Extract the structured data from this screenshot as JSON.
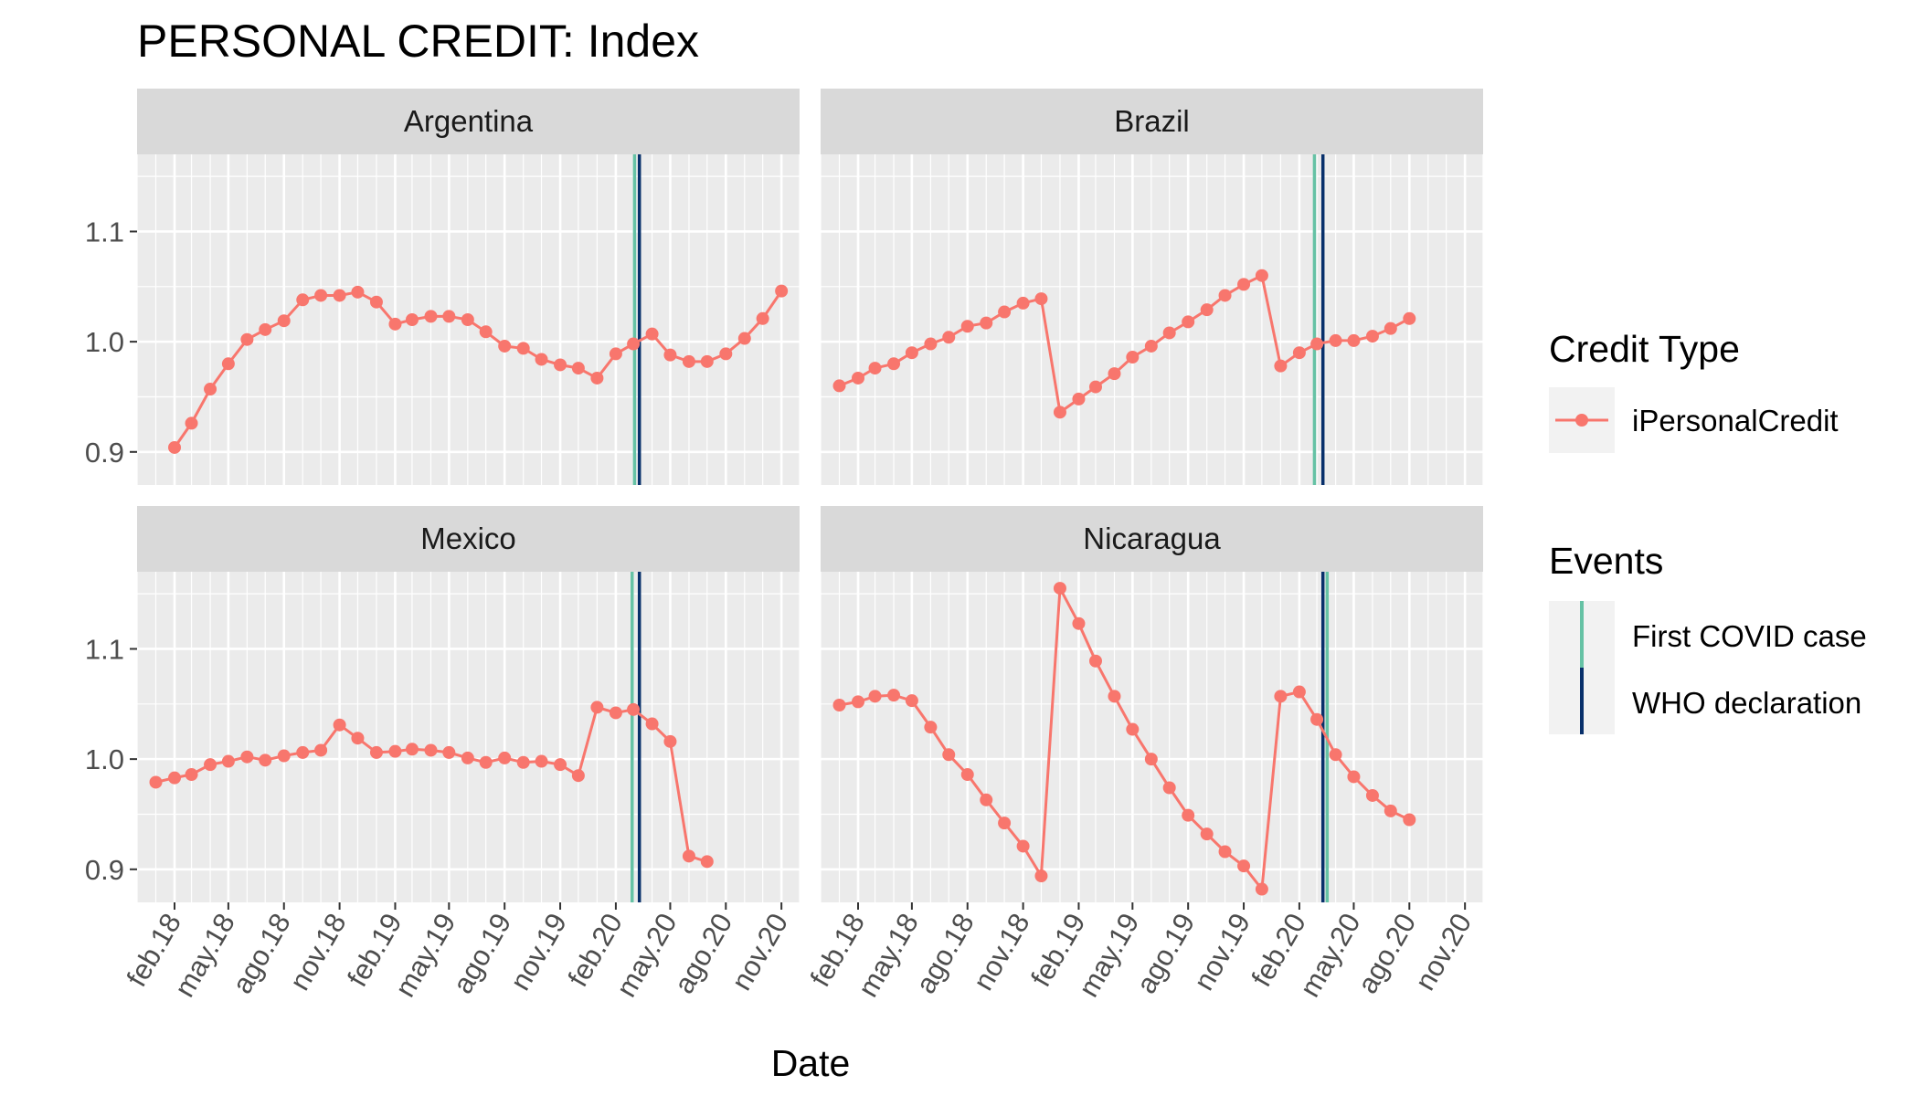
{
  "chart_data": {
    "type": "line",
    "title": "PERSONAL CREDIT: Index",
    "xlabel": "Date",
    "ylabel": "",
    "ylim": [
      0.87,
      1.17
    ],
    "yticks": [
      0.9,
      1.0,
      1.1
    ],
    "ytick_labels": [
      "0.9",
      "1.0",
      "1.1"
    ],
    "xlim": [
      "2017-12-01",
      "2020-12-01"
    ],
    "xticks": [
      "2018-02",
      "2018-05",
      "2018-08",
      "2018-11",
      "2019-02",
      "2019-05",
      "2019-08",
      "2019-11",
      "2020-02",
      "2020-05",
      "2020-08",
      "2020-11"
    ],
    "xtick_labels": [
      "feb.18",
      "may.18",
      "ago.18",
      "nov.18",
      "feb.19",
      "may.19",
      "ago.19",
      "nov.19",
      "feb.20",
      "may.20",
      "ago.20",
      "nov.20"
    ],
    "grid": true,
    "legend_position": "right",
    "series_name": "iPersonalCredit",
    "series_color": "#F8766D",
    "legend": {
      "credit_title": "Credit Type",
      "events_title": "Events"
    },
    "events": [
      {
        "label": "First COVID case",
        "color": "#66C2A5"
      },
      {
        "label": "WHO declaration",
        "color": "#08306B"
      }
    ],
    "panels": [
      {
        "name": "Argentina",
        "first_covid": "2020-03-03",
        "who": "2020-03-11",
        "x": [
          "2018-02",
          "2018-03",
          "2018-04",
          "2018-05",
          "2018-06",
          "2018-07",
          "2018-08",
          "2018-09",
          "2018-10",
          "2018-11",
          "2018-12",
          "2019-01",
          "2019-02",
          "2019-03",
          "2019-04",
          "2019-05",
          "2019-06",
          "2019-07",
          "2019-08",
          "2019-09",
          "2019-10",
          "2019-11",
          "2019-12",
          "2020-01",
          "2020-02",
          "2020-03",
          "2020-04",
          "2020-05",
          "2020-06",
          "2020-07",
          "2020-08",
          "2020-09",
          "2020-10",
          "2020-11"
        ],
        "y": [
          0.904,
          0.926,
          0.957,
          0.98,
          1.002,
          1.011,
          1.019,
          1.038,
          1.042,
          1.042,
          1.045,
          1.036,
          1.016,
          1.02,
          1.023,
          1.023,
          1.02,
          1.009,
          0.996,
          0.994,
          0.984,
          0.979,
          0.976,
          0.967,
          0.989,
          0.998,
          1.007,
          0.988,
          0.982,
          0.982,
          0.989,
          1.003,
          1.021,
          1.046
        ]
      },
      {
        "name": "Brazil",
        "first_covid": "2020-02-26",
        "who": "2020-03-11",
        "x": [
          "2018-01",
          "2018-02",
          "2018-03",
          "2018-04",
          "2018-05",
          "2018-06",
          "2018-07",
          "2018-08",
          "2018-09",
          "2018-10",
          "2018-11",
          "2018-12",
          "2019-01",
          "2019-02",
          "2019-03",
          "2019-04",
          "2019-05",
          "2019-06",
          "2019-07",
          "2019-08",
          "2019-09",
          "2019-10",
          "2019-11",
          "2019-12",
          "2020-01",
          "2020-02",
          "2020-03",
          "2020-04",
          "2020-05",
          "2020-06",
          "2020-07",
          "2020-08"
        ],
        "y": [
          0.96,
          0.967,
          0.976,
          0.98,
          0.99,
          0.998,
          1.004,
          1.014,
          1.017,
          1.027,
          1.035,
          1.039,
          0.936,
          0.948,
          0.959,
          0.971,
          0.986,
          0.996,
          1.008,
          1.018,
          1.029,
          1.042,
          1.052,
          1.06,
          0.978,
          0.99,
          0.998,
          1.001,
          1.001,
          1.005,
          1.012,
          1.021
        ]
      },
      {
        "name": "Mexico",
        "first_covid": "2020-02-28",
        "who": "2020-03-11",
        "x": [
          "2018-01",
          "2018-02",
          "2018-03",
          "2018-04",
          "2018-05",
          "2018-06",
          "2018-07",
          "2018-08",
          "2018-09",
          "2018-10",
          "2018-11",
          "2018-12",
          "2019-01",
          "2019-02",
          "2019-03",
          "2019-04",
          "2019-05",
          "2019-06",
          "2019-07",
          "2019-08",
          "2019-09",
          "2019-10",
          "2019-11",
          "2019-12",
          "2020-01",
          "2020-02",
          "2020-03",
          "2020-04",
          "2020-05",
          "2020-06",
          "2020-07"
        ],
        "y": [
          0.979,
          0.983,
          0.986,
          0.995,
          0.998,
          1.002,
          0.999,
          1.003,
          1.006,
          1.008,
          1.031,
          1.019,
          1.006,
          1.007,
          1.009,
          1.008,
          1.006,
          1.001,
          0.997,
          1.001,
          0.997,
          0.998,
          0.995,
          0.985,
          1.047,
          1.042,
          1.045,
          1.032,
          1.016,
          0.912,
          0.907
        ]
      },
      {
        "name": "Nicaragua",
        "first_covid": "2020-03-18",
        "who": "2020-03-11",
        "x": [
          "2018-01",
          "2018-02",
          "2018-03",
          "2018-04",
          "2018-05",
          "2018-06",
          "2018-07",
          "2018-08",
          "2018-09",
          "2018-10",
          "2018-11",
          "2018-12",
          "2019-01",
          "2019-02",
          "2019-03",
          "2019-04",
          "2019-05",
          "2019-06",
          "2019-07",
          "2019-08",
          "2019-09",
          "2019-10",
          "2019-11",
          "2019-12",
          "2020-01",
          "2020-02",
          "2020-03",
          "2020-04",
          "2020-05",
          "2020-06",
          "2020-07",
          "2020-08"
        ],
        "y": [
          1.049,
          1.052,
          1.057,
          1.058,
          1.053,
          1.029,
          1.004,
          0.986,
          0.963,
          0.942,
          0.921,
          0.894,
          1.155,
          1.123,
          1.089,
          1.057,
          1.027,
          1.0,
          0.974,
          0.949,
          0.932,
          0.916,
          0.903,
          0.882,
          1.057,
          1.061,
          1.036,
          1.004,
          0.984,
          0.967,
          0.953,
          0.945
        ]
      }
    ]
  }
}
